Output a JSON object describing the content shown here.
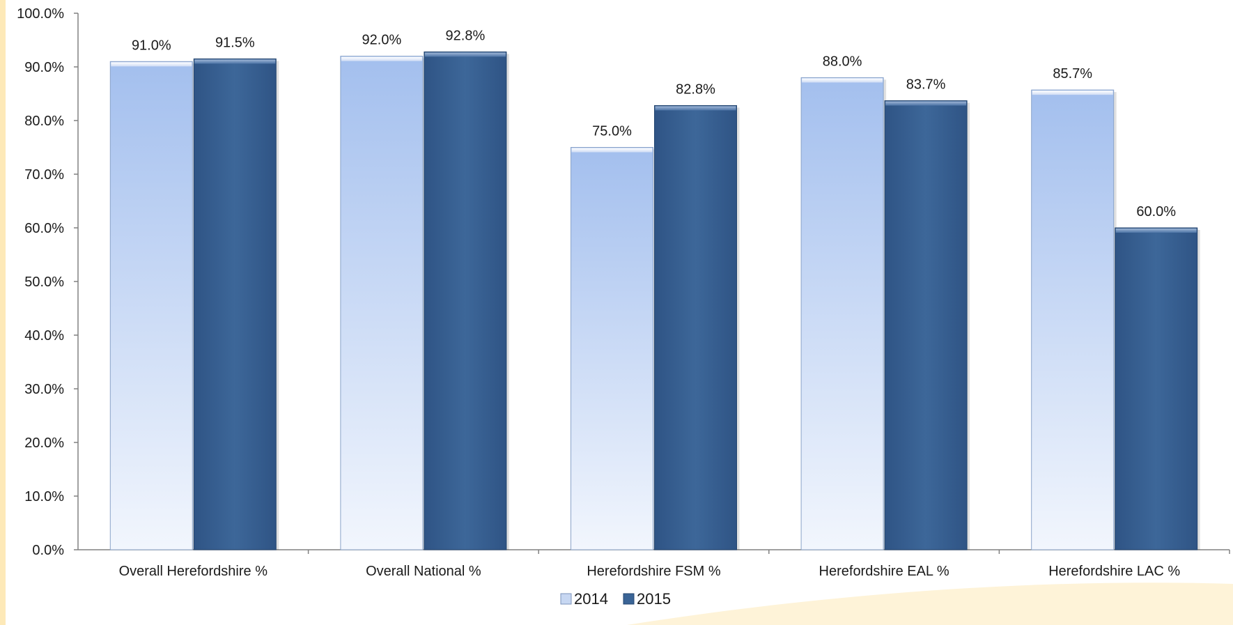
{
  "chart_data": {
    "type": "bar",
    "title": "",
    "xlabel": "",
    "ylabel": "",
    "categories": [
      "Overall Herefordshire %",
      "Overall National %",
      "Herefordshire FSM %",
      "Herefordshire EAL %",
      "Herefordshire LAC %"
    ],
    "series": [
      {
        "name": "2014",
        "values": [
          91.0,
          92.0,
          75.0,
          88.0,
          85.7
        ],
        "labels": [
          "91.0%",
          "92.0%",
          "75.0%",
          "88.0%",
          "85.7%"
        ],
        "color": "#a9c4ef"
      },
      {
        "name": "2015",
        "values": [
          91.5,
          92.8,
          82.8,
          83.7,
          60.0
        ],
        "labels": [
          "91.5%",
          "92.8%",
          "82.8%",
          "83.7%",
          "60.0%"
        ],
        "color": "#3a6496"
      }
    ],
    "ylim": [
      0,
      100
    ],
    "yticks": [
      "0.0%",
      "10.0%",
      "20.0%",
      "30.0%",
      "40.0%",
      "50.0%",
      "60.0%",
      "70.0%",
      "80.0%",
      "90.0%",
      "100.0%"
    ],
    "grid": false,
    "legend": "bottom"
  },
  "decor": {
    "accent_color": "#fde9b8"
  }
}
